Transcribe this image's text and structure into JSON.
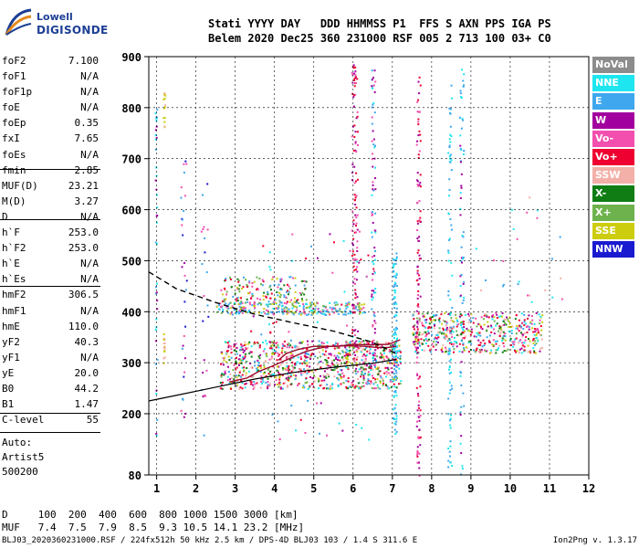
{
  "logo": {
    "line1": "Lowell",
    "line2": "DIGISONDE"
  },
  "header": {
    "row1": "Stati YYYY DAY   DDD HHMMSS P1  FFS S AXN PPS IGA PS",
    "row2": "Belem 2020 Dec25 360 231000 RSF 005 2 713 100 03+ C0"
  },
  "params": [
    {
      "label": "foF2",
      "value": "7.100"
    },
    {
      "label": "foF1",
      "value": "N/A"
    },
    {
      "label": "foF1p",
      "value": "N/A"
    },
    {
      "label": "foE",
      "value": "N/A"
    },
    {
      "label": "foEp",
      "value": "0.35"
    },
    {
      "label": "fxI",
      "value": "7.65"
    },
    {
      "label": "foEs",
      "value": "N/A"
    },
    {
      "label": "fmin",
      "value": "2.85"
    },
    {
      "label": "MUF(D)",
      "value": "23.21"
    },
    {
      "label": "M(D)",
      "value": "3.27"
    },
    {
      "label": "D",
      "value": "N/A"
    },
    {
      "label": "h`F",
      "value": "253.0"
    },
    {
      "label": "h`F2",
      "value": "253.0"
    },
    {
      "label": "h`E",
      "value": "N/A"
    },
    {
      "label": "h`Es",
      "value": "N/A"
    },
    {
      "label": "hmF2",
      "value": "306.5"
    },
    {
      "label": "hmF1",
      "value": "N/A"
    },
    {
      "label": "hmE",
      "value": "110.0"
    },
    {
      "label": "yF2",
      "value": "40.3"
    },
    {
      "label": "yF1",
      "value": "N/A"
    },
    {
      "label": "yE",
      "value": "20.0"
    },
    {
      "label": "B0",
      "value": "44.2"
    },
    {
      "label": "B1",
      "value": "1.47"
    },
    {
      "label": "C-level",
      "value": "55"
    }
  ],
  "auto": {
    "line1": "Auto:",
    "line2": "Artist5",
    "line3": "500200"
  },
  "legend": [
    {
      "label": "NoVal",
      "color": "#8c8c8c"
    },
    {
      "label": "NNE",
      "color": "#1ee6f0"
    },
    {
      "label": "E",
      "color": "#3fa7ee"
    },
    {
      "label": "W",
      "color": "#a2009e"
    },
    {
      "label": "Vo-",
      "color": "#f24fae"
    },
    {
      "label": "Vo+",
      "color": "#ee0030"
    },
    {
      "label": "SSW",
      "color": "#f3b0a8"
    },
    {
      "label": "X-",
      "color": "#0f7d14"
    },
    {
      "label": "X+",
      "color": "#6db24c"
    },
    {
      "label": "SSE",
      "color": "#cdcd10"
    },
    {
      "label": "NNW",
      "color": "#1a1ad0"
    }
  ],
  "dmuf": {
    "row1": "D     100  200  400  600  800 1000 1500 3000 [km]",
    "row2": "MUF   7.4  7.5  7.9  8.5  9.3 10.5 14.1 23.2 [MHz]"
  },
  "footer": {
    "left": "BLJ03_2020360231000.RSF / 224fx512h 50 kHz 2.5 km / DPS-4D BLJ03 103 / 1.4 S 311.6 E",
    "right": "Ion2Png v. 1.3.17"
  },
  "chart_data": {
    "type": "scatter",
    "title": "",
    "xlabel": "",
    "ylabel": "",
    "xlim": [
      0.8,
      12
    ],
    "ylim": [
      80,
      900
    ],
    "x_ticks": [
      1,
      2,
      3,
      4,
      5,
      6,
      7,
      8,
      9,
      10,
      11,
      12
    ],
    "y_ticks": [
      80,
      200,
      300,
      400,
      500,
      600,
      700,
      800,
      900
    ],
    "grid": true,
    "series": [
      {
        "name": "O-trace",
        "color": "#9a0a2a",
        "points": [
          [
            2.85,
            262
          ],
          [
            3.0,
            265
          ],
          [
            3.3,
            270
          ],
          [
            3.6,
            283
          ],
          [
            3.9,
            292
          ],
          [
            4.2,
            302
          ],
          [
            4.5,
            312
          ],
          [
            4.8,
            322
          ],
          [
            5.1,
            328
          ],
          [
            5.4,
            332
          ],
          [
            5.7,
            333
          ],
          [
            6.0,
            333
          ],
          [
            6.3,
            332
          ],
          [
            6.6,
            330
          ],
          [
            6.9,
            330
          ],
          [
            7.1,
            332
          ]
        ]
      },
      {
        "name": "X-trace",
        "color": "#9a0a2a",
        "points": [
          [
            4.1,
            305
          ],
          [
            4.3,
            318
          ],
          [
            4.6,
            326
          ],
          [
            5.0,
            332
          ],
          [
            5.6,
            332
          ],
          [
            6.0,
            336
          ],
          [
            6.4,
            335
          ],
          [
            6.9,
            336
          ],
          [
            7.2,
            345
          ]
        ]
      },
      {
        "name": "Profile",
        "color": "#000000",
        "points": [
          [
            0.8,
            225
          ],
          [
            1.5,
            236
          ],
          [
            2.5,
            252
          ],
          [
            3.5,
            268
          ],
          [
            4.5,
            281
          ],
          [
            5.5,
            291
          ],
          [
            6.5,
            299
          ],
          [
            7.1,
            306.5
          ]
        ]
      },
      {
        "name": "Dashed",
        "color": "#000000",
        "dashed": true,
        "points": [
          [
            0.8,
            478
          ],
          [
            1.5,
            445
          ],
          [
            2.5,
            418
          ],
          [
            3.5,
            395
          ],
          [
            4.5,
            378
          ],
          [
            5.5,
            362
          ],
          [
            6.5,
            340
          ],
          [
            7.1,
            318
          ]
        ]
      }
    ]
  }
}
